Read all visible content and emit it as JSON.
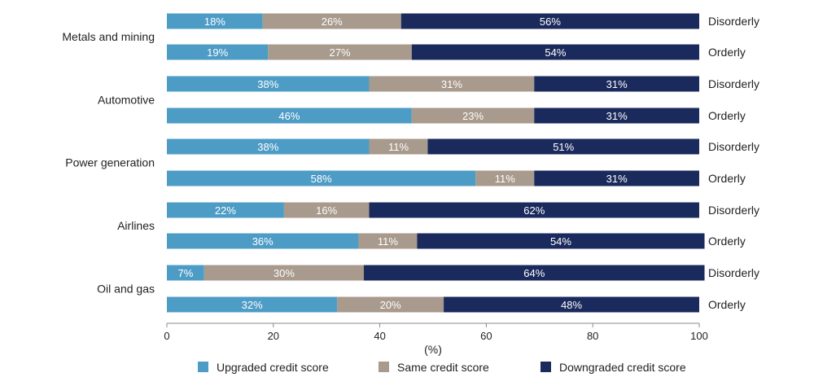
{
  "chart_data": {
    "type": "bar",
    "orientation": "horizontal",
    "stacked": true,
    "industries": [
      {
        "name": "Metals and mining",
        "rows": [
          {
            "scenario": "Disorderly",
            "values": [
              18,
              26,
              56
            ],
            "labels": [
              "18%",
              "26%",
              "56%"
            ]
          },
          {
            "scenario": "Orderly",
            "values": [
              19,
              27,
              54
            ],
            "labels": [
              "19%",
              "27%",
              "54%"
            ]
          }
        ]
      },
      {
        "name": "Automotive",
        "rows": [
          {
            "scenario": "Disorderly",
            "values": [
              38,
              31,
              31
            ],
            "labels": [
              "38%",
              "31%",
              "31%"
            ]
          },
          {
            "scenario": "Orderly",
            "values": [
              46,
              23,
              31
            ],
            "labels": [
              "46%",
              "23%",
              "31%"
            ]
          }
        ]
      },
      {
        "name": "Power generation",
        "rows": [
          {
            "scenario": "Disorderly",
            "values": [
              38,
              11,
              51
            ],
            "labels": [
              "38%",
              "11%",
              "51%"
            ]
          },
          {
            "scenario": "Orderly",
            "values": [
              58,
              11,
              31
            ],
            "labels": [
              "58%",
              "11%",
              "31%"
            ]
          }
        ]
      },
      {
        "name": "Airlines",
        "rows": [
          {
            "scenario": "Disorderly",
            "values": [
              22,
              16,
              62
            ],
            "labels": [
              "22%",
              "16%",
              "62%"
            ]
          },
          {
            "scenario": "Orderly",
            "values": [
              36,
              11,
              54
            ],
            "labels": [
              "36%",
              "11%",
              "54%"
            ]
          }
        ]
      },
      {
        "name": "Oil and gas",
        "rows": [
          {
            "scenario": "Disorderly",
            "values": [
              7,
              30,
              64
            ],
            "labels": [
              "7%",
              "30%",
              "64%"
            ]
          },
          {
            "scenario": "Orderly",
            "values": [
              32,
              20,
              48
            ],
            "labels": [
              "32%",
              "20%",
              "48%"
            ]
          }
        ]
      }
    ],
    "series": [
      {
        "name": "Upgraded credit score",
        "color": "#4d9cc6"
      },
      {
        "name": "Same credit score",
        "color": "#a89a8c"
      },
      {
        "name": "Downgraded credit score",
        "color": "#1b2a5c"
      }
    ],
    "xlabel": "(%)",
    "xlim": [
      0,
      100
    ],
    "xticks": [
      0,
      20,
      40,
      60,
      80,
      100
    ],
    "grid": false,
    "legend": "bottom"
  }
}
